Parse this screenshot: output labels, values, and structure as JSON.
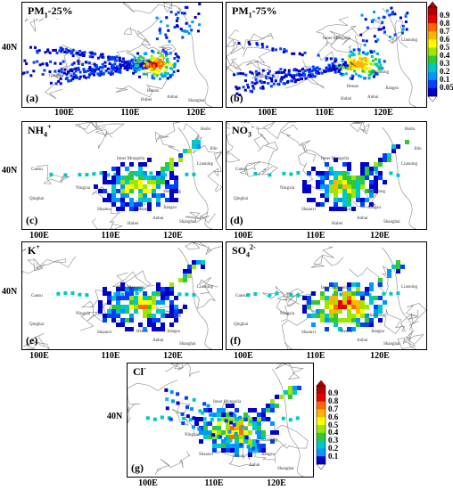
{
  "figure": {
    "lat_label": "40N",
    "lon_labels": [
      "100E",
      "110E",
      "120E"
    ],
    "panels": [
      {
        "id": "a",
        "title_main": "PM",
        "title_sub": "1",
        "title_sup": "",
        "title_tail": "-25%",
        "letter": "(a)",
        "pattern": "pm25"
      },
      {
        "id": "b",
        "title_main": "PM",
        "title_sub": "1",
        "title_sup": "",
        "title_tail": "-75%",
        "letter": "(b)",
        "pattern": "pm75"
      },
      {
        "id": "c",
        "title_main": "NH",
        "title_sub": "4",
        "title_sup": "+",
        "title_tail": "",
        "letter": "(c)",
        "pattern": "ion"
      },
      {
        "id": "d",
        "title_main": "NO",
        "title_sub": "3",
        "title_sup": "-",
        "title_tail": "",
        "letter": "(d)",
        "pattern": "ion"
      },
      {
        "id": "e",
        "title_main": "K",
        "title_sub": "",
        "title_sup": "+",
        "title_tail": "",
        "letter": "(e)",
        "pattern": "ion2"
      },
      {
        "id": "f",
        "title_main": "SO",
        "title_sub": "4",
        "title_sup": "2-",
        "title_tail": "",
        "letter": "(f)",
        "pattern": "ion3"
      },
      {
        "id": "g",
        "title_main": "Cl",
        "title_sub": "",
        "title_sup": "-",
        "title_tail": "",
        "letter": "(g)",
        "pattern": "cl"
      }
    ],
    "places": {
      "Inner Mongolia": "Inner Mongolia",
      "Liaoning": "Liaoning",
      "Gansu": "Gansu",
      "Ningxia": "Ningxia",
      "Qinghai": "Qinghai",
      "Shanxi": "Shanxi",
      "Hebei": "Hebei",
      "Shandong": "Shandong",
      "Shaanxi": "Shaanxi",
      "Henan": "Henan",
      "Hubei": "Hubei",
      "Anhui": "Anhui",
      "Jiangsu": "Jiangsu",
      "Shanghai": "Shanghai",
      "Jilin": "Jilin",
      "Heilongjiang": "Heilo"
    },
    "colorbar_top": {
      "ticks": [
        "0.9",
        "0.8",
        "0.7",
        "0.6",
        "0.5",
        "0.4",
        "0.3",
        "0.2",
        "0.1",
        "0.05"
      ],
      "colors": [
        "#b40000",
        "#e60000",
        "#ff6a00",
        "#ffb400",
        "#ffff00",
        "#9ee600",
        "#32c832",
        "#00c8c8",
        "#0096ff",
        "#0040ff",
        "#0000c8"
      ]
    },
    "colorbar_bottom": {
      "ticks": [
        "0.9",
        "0.8",
        "0.7",
        "0.6",
        "0.5",
        "0.4",
        "0.3",
        "0.2",
        "0.1"
      ],
      "colors": [
        "#b40000",
        "#e60000",
        "#ff6a00",
        "#ffb400",
        "#ffff00",
        "#9ee600",
        "#32c832",
        "#00c8c8",
        "#0096ff",
        "#0000c8"
      ]
    }
  }
}
